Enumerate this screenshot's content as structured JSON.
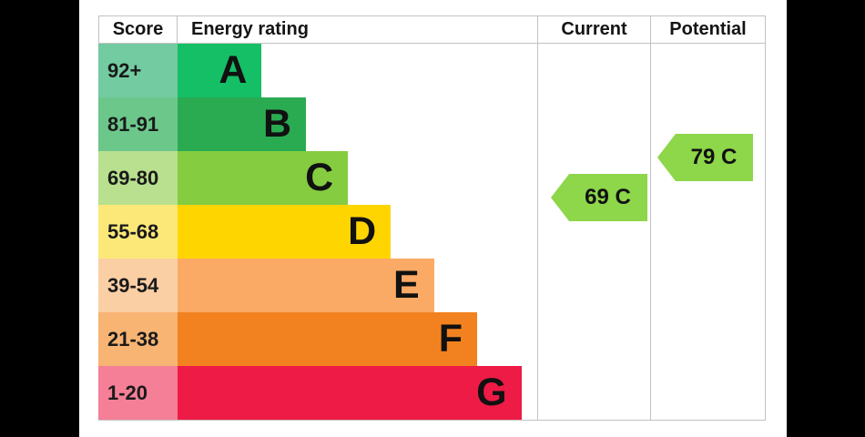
{
  "header": {
    "score": "Score",
    "rating": "Energy rating",
    "current": "Current",
    "potential": "Potential"
  },
  "bands": [
    {
      "range": "92+",
      "letter": "A",
      "bar_color": "#14bf66",
      "score_color": "#72cba1",
      "width_pct": 23.4
    },
    {
      "range": "81-91",
      "letter": "B",
      "bar_color": "#2aab52",
      "score_color": "#6cc78b",
      "width_pct": 35.7
    },
    {
      "range": "69-80",
      "letter": "C",
      "bar_color": "#85cc41",
      "score_color": "#b8e08e",
      "width_pct": 47.4
    },
    {
      "range": "55-68",
      "letter": "D",
      "bar_color": "#ffd500",
      "score_color": "#fce878",
      "width_pct": 59.3
    },
    {
      "range": "39-54",
      "letter": "E",
      "bar_color": "#fbaa65",
      "score_color": "#fbcfa4",
      "width_pct": 71.3
    },
    {
      "range": "21-38",
      "letter": "F",
      "bar_color": "#f28220",
      "score_color": "#f7b473",
      "width_pct": 83.3
    },
    {
      "range": "1-20",
      "letter": "G",
      "bar_color": "#ed1b45",
      "score_color": "#f47f96",
      "width_pct": 95.6
    }
  ],
  "markers": {
    "current": {
      "label": "69 C",
      "value": 69,
      "band": "C",
      "color": "#8ed64a"
    },
    "potential": {
      "label": "79 C",
      "value": 79,
      "band": "C",
      "color": "#8ed64a"
    }
  },
  "colors": {
    "grid_line": "#c2c2c2",
    "page_background": "#000000",
    "panel_background": "#ffffff",
    "text": "#111111"
  },
  "chart_data": {
    "type": "table",
    "title": "EPC energy rating chart",
    "columns": [
      "Score",
      "Energy rating",
      "Current",
      "Potential"
    ],
    "rows": [
      [
        "92+",
        "A",
        "",
        ""
      ],
      [
        "81-91",
        "B",
        "",
        ""
      ],
      [
        "69-80",
        "C",
        "69 C",
        "79 C"
      ],
      [
        "55-68",
        "D",
        "",
        ""
      ],
      [
        "39-54",
        "E",
        "",
        ""
      ],
      [
        "21-38",
        "F",
        "",
        ""
      ],
      [
        "1-20",
        "G",
        "",
        ""
      ]
    ],
    "current": {
      "value": 69,
      "band": "C"
    },
    "potential": {
      "value": 79,
      "band": "C"
    },
    "legend_position": "none",
    "grid": true
  }
}
